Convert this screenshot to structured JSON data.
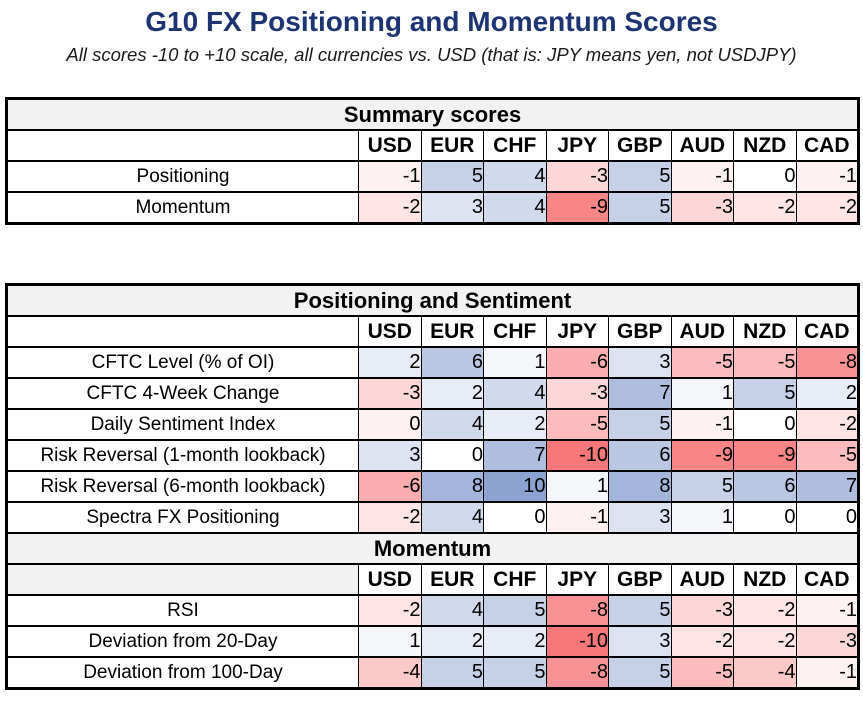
{
  "title": "G10 FX Positioning and Momentum Scores",
  "subtitle": "All scores -10 to +10 scale, all currencies vs. USD (that is: JPY means yen, not USDJPY)",
  "colors": {
    "title_text": "#1C3572",
    "subtitle_text": "#1A1A1A",
    "banner_bg": "#F2F2F2",
    "header_bg": "#FFFFFF",
    "border": "#000000",
    "positive_max": "#8CA2D1",
    "negative_max": "#F87779",
    "neutral": "#FFFFFF"
  },
  "columns": [
    "USD",
    "EUR",
    "CHF",
    "JPY",
    "GBP",
    "AUD",
    "NZD",
    "CAD"
  ],
  "scale": {
    "min": -10,
    "max": 10
  },
  "chart_data": [
    {
      "type": "table",
      "title": "Summary scores",
      "columns": [
        "USD",
        "EUR",
        "CHF",
        "JPY",
        "GBP",
        "AUD",
        "NZD",
        "CAD"
      ],
      "rows": [
        {
          "label": "Positioning",
          "values": [
            -1,
            5,
            4,
            -3,
            5,
            -1,
            0,
            -1
          ]
        },
        {
          "label": "Momentum",
          "values": [
            -2,
            3,
            4,
            -9,
            5,
            -3,
            -2,
            -2
          ]
        }
      ]
    },
    {
      "type": "table",
      "title": "Positioning and Sentiment",
      "columns": [
        "USD",
        "EUR",
        "CHF",
        "JPY",
        "GBP",
        "AUD",
        "NZD",
        "CAD"
      ],
      "rows": [
        {
          "label": "CFTC Level (% of OI)",
          "values": [
            2,
            6,
            1,
            -6,
            3,
            -5,
            -5,
            -8
          ]
        },
        {
          "label": "CFTC 4-Week Change",
          "values": [
            -3,
            2,
            4,
            -3,
            7,
            1,
            5,
            2
          ]
        },
        {
          "label": "Daily Sentiment Index",
          "values": [
            0,
            4,
            2,
            -5,
            5,
            -1,
            0,
            -2
          ],
          "shade_overrides": {
            "0": -1
          }
        },
        {
          "label": "Risk Reversal (1-month lookback)",
          "values": [
            3,
            0,
            7,
            -10,
            6,
            -9,
            -9,
            -5
          ]
        },
        {
          "label": "Risk Reversal (6-month lookback)",
          "values": [
            -6,
            8,
            10,
            1,
            8,
            5,
            6,
            7
          ]
        },
        {
          "label": "Spectra FX Positioning",
          "values": [
            -2,
            4,
            0,
            -1,
            3,
            1,
            0,
            0
          ]
        }
      ]
    },
    {
      "type": "table",
      "title": "Momentum",
      "columns": [
        "USD",
        "EUR",
        "CHF",
        "JPY",
        "GBP",
        "AUD",
        "NZD",
        "CAD"
      ],
      "header_label_gray": true,
      "rows": [
        {
          "label": "RSI",
          "values": [
            -2,
            4,
            5,
            -8,
            5,
            -3,
            -2,
            -1
          ]
        },
        {
          "label": "Deviation from 20-Day",
          "values": [
            1,
            2,
            2,
            -10,
            3,
            -2,
            -2,
            -3
          ]
        },
        {
          "label": "Deviation from 100-Day",
          "values": [
            -4,
            5,
            5,
            -8,
            5,
            -5,
            -4,
            -1
          ]
        }
      ]
    }
  ]
}
